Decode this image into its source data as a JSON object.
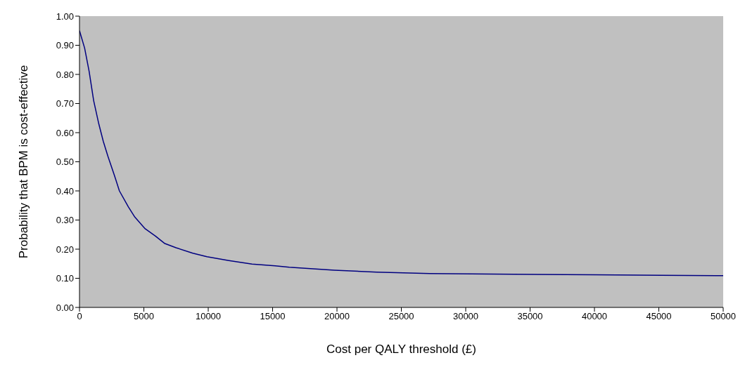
{
  "chart_data": {
    "type": "line",
    "xlabel": "Cost per QALY threshold (£)",
    "ylabel": "Probability that BPM is cost-effective",
    "x": [
      0,
      400,
      750,
      1100,
      1500,
      1850,
      2200,
      2700,
      3100,
      3800,
      4300,
      5100,
      5900,
      6600,
      7500,
      8800,
      9900,
      11600,
      13400,
      15200,
      16300,
      19800,
      23100,
      27200,
      33700,
      40000,
      45200,
      50000
    ],
    "series": [
      {
        "color": "#000080",
        "values": [
          0.95,
          0.89,
          0.81,
          0.71,
          0.63,
          0.57,
          0.52,
          0.455,
          0.4,
          0.345,
          0.31,
          0.27,
          0.245,
          0.22,
          0.205,
          0.186,
          0.174,
          0.161,
          0.149,
          0.143,
          0.138,
          0.128,
          0.121,
          0.116,
          0.114,
          0.112,
          0.11,
          0.109
        ]
      }
    ],
    "xlim": [
      0,
      50000
    ],
    "xticks": [
      0,
      5000,
      10000,
      15000,
      20000,
      25000,
      30000,
      35000,
      40000,
      45000,
      50000
    ],
    "ylim": [
      0,
      1
    ],
    "yticks": [
      {
        "value": 0,
        "label": "0.00"
      },
      {
        "value": 0.1,
        "label": "0.10"
      },
      {
        "value": 0.2,
        "label": "0.20"
      },
      {
        "value": 0.3,
        "label": "0.30"
      },
      {
        "value": 0.4,
        "label": "0.40"
      },
      {
        "value": 0.5,
        "label": "0.50"
      },
      {
        "value": 0.6,
        "label": "0.60"
      },
      {
        "value": 0.7,
        "label": "0.70"
      },
      {
        "value": 0.8,
        "label": "0.80"
      },
      {
        "value": 0.9,
        "label": "0.90"
      },
      {
        "value": 1,
        "label": "1.00"
      }
    ],
    "marker": "none",
    "line_style": "solid"
  }
}
